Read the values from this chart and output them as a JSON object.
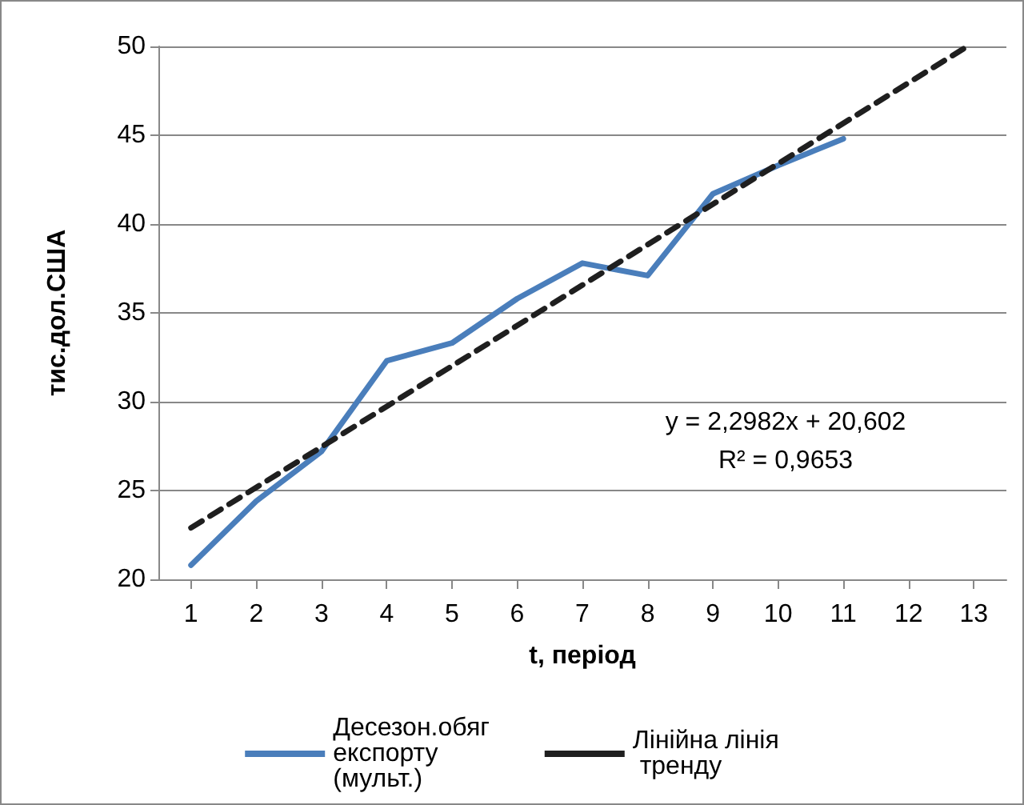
{
  "chart_data": {
    "type": "line",
    "xlabel": "t, період",
    "ylabel": "тис.дол.США",
    "xlim": [
      0.5,
      13.5
    ],
    "xticks": [
      1,
      2,
      3,
      4,
      5,
      6,
      7,
      8,
      9,
      10,
      11,
      12,
      13
    ],
    "ylim": [
      20,
      50
    ],
    "yticks": [
      20,
      25,
      30,
      35,
      40,
      45,
      50
    ],
    "series": [
      {
        "name": "Десезон.обяг експорту (мульт.)",
        "color": "#4a7ebb",
        "x": [
          1,
          2,
          3,
          4,
          5,
          6,
          7,
          8,
          9,
          10,
          11
        ],
        "values": [
          20.8,
          24.4,
          27.2,
          32.3,
          33.3,
          35.8,
          37.8,
          37.1,
          41.7,
          43.3,
          44.8
        ]
      },
      {
        "name": "Лінійна лінія тренду",
        "color": "#1f1f1f",
        "line_style": "dashed",
        "x": [
          1,
          12.9
        ],
        "values": [
          22.9,
          50
        ]
      }
    ],
    "annotations": [
      "y = 2,2982x + 20,602",
      "R² = 0,9653"
    ],
    "grid": "y",
    "legend": "bottom",
    "marker": "none"
  }
}
